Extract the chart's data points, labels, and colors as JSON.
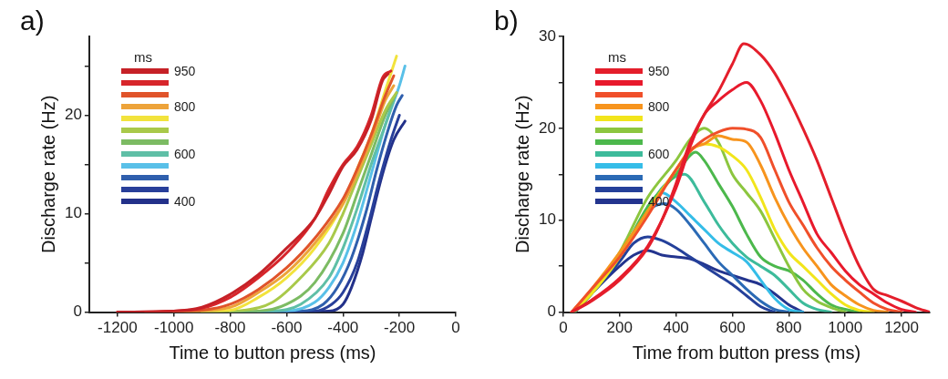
{
  "chart_data": [
    {
      "type": "line",
      "xlabel": "Time to button press (ms)",
      "ylabel": "Discharge rate (Hz)",
      "legend_title": "ms",
      "legend": "top left",
      "grid": false,
      "marker": "none",
      "line_style": "solid",
      "annotations": [
        "a)"
      ],
      "xlim": [
        -1300,
        0
      ],
      "xticks": [
        -1200,
        -1000,
        -800,
        -600,
        -400,
        -200,
        0
      ],
      "ylim": [
        0,
        28
      ],
      "yticks": [
        0,
        {
          "value": 5,
          "label": null
        },
        10,
        {
          "value": 15,
          "label": null
        },
        20,
        {
          "value": 25,
          "label": null
        }
      ],
      "series": [
        {
          "name": "950",
          "color": "#c62127",
          "x": [
            -1200,
            -1000,
            -900,
            -800,
            -700,
            -600,
            -500,
            -450,
            -400,
            -350,
            -300,
            -260,
            -240
          ],
          "values": [
            0,
            0.1,
            0.5,
            1.8,
            3.8,
            6.5,
            9.5,
            12,
            14.8,
            16.5,
            19.5,
            23.5,
            24.2
          ]
        },
        {
          "color": "#d7262b",
          "x": [
            -1200,
            -1000,
            -900,
            -800,
            -700,
            -600,
            -500,
            -450,
            -400,
            -350,
            -300,
            -260,
            -230
          ],
          "values": [
            0,
            0.1,
            0.4,
            1.5,
            3.5,
            6,
            9.5,
            12.5,
            15,
            16.8,
            20,
            23.8,
            24.5
          ]
        },
        {
          "color": "#e0542a",
          "x": [
            -1100,
            -900,
            -800,
            -700,
            -600,
            -500,
            -400,
            -350,
            -300,
            -250,
            -220
          ],
          "values": [
            0,
            0.2,
            0.8,
            2.3,
            4.5,
            7.5,
            11.5,
            14.5,
            18,
            22,
            24
          ]
        },
        {
          "name": "800",
          "color": "#eda33a",
          "x": [
            -1000,
            -800,
            -700,
            -600,
            -500,
            -400,
            -350,
            -300,
            -250,
            -220
          ],
          "values": [
            0,
            0.5,
            2,
            4,
            7,
            11,
            14,
            17.5,
            21.5,
            23
          ]
        },
        {
          "color": "#f2e33c",
          "x": [
            -1000,
            -800,
            -700,
            -600,
            -500,
            -400,
            -350,
            -300,
            -250,
            -210
          ],
          "values": [
            0,
            0.2,
            1.5,
            3.5,
            6.5,
            11,
            14.5,
            18,
            22.5,
            26
          ]
        },
        {
          "color": "#a9c94a",
          "x": [
            -900,
            -750,
            -650,
            -550,
            -450,
            -400,
            -350,
            -300,
            -250,
            -210
          ],
          "values": [
            0,
            0.2,
            1,
            3.5,
            7,
            10,
            13.5,
            17,
            20.5,
            22.3
          ]
        },
        {
          "color": "#7cbb63",
          "x": [
            -900,
            -700,
            -600,
            -500,
            -400,
            -350,
            -300,
            -250,
            -215
          ],
          "values": [
            0,
            0.1,
            0.8,
            3,
            8,
            12,
            16,
            20,
            22
          ]
        },
        {
          "name": "600",
          "color": "#5fbfa6",
          "x": [
            -800,
            -650,
            -550,
            -450,
            -400,
            -350,
            -300,
            -250,
            -220
          ],
          "values": [
            0,
            0.1,
            0.8,
            3.5,
            6.5,
            10.5,
            15,
            19,
            21.5
          ]
        },
        {
          "color": "#59c0e8",
          "x": [
            -800,
            -600,
            -500,
            -450,
            -400,
            -350,
            -300,
            -250,
            -200,
            -180
          ],
          "values": [
            0,
            0.1,
            1,
            2.5,
            5,
            9,
            14,
            19,
            23,
            25
          ]
        },
        {
          "color": "#2f5fad",
          "x": [
            -700,
            -550,
            -470,
            -420,
            -370,
            -320,
            -280,
            -240,
            -210,
            -190
          ],
          "values": [
            0,
            0.1,
            0.8,
            2.5,
            5.5,
            10,
            14.5,
            18.5,
            21,
            22
          ]
        },
        {
          "color": "#283f9a",
          "x": [
            -700,
            -500,
            -440,
            -400,
            -350,
            -310,
            -270,
            -230,
            -200
          ],
          "values": [
            0,
            0.1,
            0.8,
            2,
            5,
            9,
            13.5,
            17.5,
            20
          ]
        },
        {
          "name": "400",
          "color": "#23318a",
          "x": [
            -700,
            -450,
            -400,
            -370,
            -330,
            -300,
            -260,
            -220,
            -180
          ],
          "values": [
            0,
            0.1,
            0.8,
            2.5,
            6,
            9.5,
            14,
            17.5,
            19.4
          ]
        }
      ]
    },
    {
      "type": "line",
      "xlabel": "Time from button press (ms)",
      "ylabel": "Discharge rate (Hz)",
      "legend_title": "ms",
      "legend": "top left",
      "grid": false,
      "marker": "none",
      "line_style": "solid",
      "annotations": [
        "b)"
      ],
      "xlim": [
        0,
        1300
      ],
      "xticks": [
        0,
        200,
        400,
        600,
        800,
        1000,
        1200
      ],
      "ylim": [
        0,
        30
      ],
      "yticks": [
        0,
        {
          "value": 5,
          "label": null
        },
        10,
        {
          "value": 15,
          "label": null
        },
        20,
        {
          "value": 25,
          "label": null
        },
        30
      ],
      "series": [
        {
          "name": "950",
          "color": "#e41e2b",
          "x": [
            30,
            100,
            200,
            300,
            350,
            400,
            450,
            500,
            550,
            600,
            640,
            700,
            750,
            800,
            850,
            900,
            950,
            1000,
            1050,
            1100,
            1150,
            1200,
            1250,
            1300
          ],
          "values": [
            0,
            1.2,
            3.5,
            7,
            10,
            14,
            18.5,
            21.5,
            24,
            27,
            29.2,
            28,
            26,
            23.2,
            20,
            16.5,
            12.5,
            8.5,
            5,
            2.5,
            1.8,
            1.2,
            0.5,
            0
          ]
        },
        {
          "color": "#e8192c",
          "x": [
            30,
            100,
            200,
            300,
            400,
            450,
            500,
            550,
            600,
            650,
            700,
            750,
            800,
            850,
            900,
            950,
            1000,
            1050,
            1100,
            1150,
            1200,
            1250
          ],
          "values": [
            0,
            1.3,
            3.7,
            7.2,
            13.5,
            18,
            21.5,
            23,
            24.2,
            25,
            23,
            19.5,
            15.5,
            12,
            8.5,
            6.5,
            4.5,
            3,
            2,
            1,
            0.3,
            0
          ]
        },
        {
          "color": "#f04f2a",
          "x": [
            30,
            100,
            200,
            300,
            400,
            450,
            500,
            550,
            600,
            650,
            700,
            750,
            800,
            850,
            900,
            950,
            1000,
            1050,
            1100,
            1150,
            1200
          ],
          "values": [
            0,
            2.5,
            6,
            10.5,
            15.5,
            17.5,
            18.8,
            19.6,
            20,
            19.9,
            19,
            15.5,
            12,
            9.5,
            7,
            5,
            3.5,
            2.2,
            1,
            0.3,
            0
          ]
        },
        {
          "name": "800",
          "color": "#f7941d",
          "x": [
            30,
            100,
            200,
            300,
            400,
            450,
            500,
            550,
            600,
            650,
            700,
            750,
            800,
            850,
            900,
            950,
            1000,
            1050,
            1100,
            1150
          ],
          "values": [
            0,
            2.5,
            6.5,
            11,
            15.5,
            17.7,
            18.3,
            19.2,
            18.8,
            18.5,
            16,
            12.5,
            9.5,
            7,
            5,
            3,
            1.8,
            0.8,
            0.2,
            0
          ]
        },
        {
          "color": "#f2e51b",
          "x": [
            30,
            100,
            200,
            300,
            400,
            450,
            500,
            550,
            600,
            650,
            700,
            750,
            800,
            850,
            900,
            950,
            1000,
            1050,
            1100
          ],
          "values": [
            0,
            2,
            6,
            11,
            15.5,
            17.5,
            18.3,
            18,
            17,
            15.5,
            12.5,
            9,
            6.5,
            5,
            3.5,
            2,
            0.8,
            0.2,
            0
          ]
        },
        {
          "color": "#8cc63f",
          "x": [
            40,
            100,
            200,
            300,
            400,
            450,
            500,
            550,
            600,
            650,
            700,
            750,
            800,
            850,
            900,
            950,
            1000
          ],
          "values": [
            0,
            2,
            6.5,
            12.5,
            16.5,
            18.8,
            20,
            18.5,
            15,
            13,
            11,
            8,
            5,
            2.5,
            1.2,
            0.5,
            0
          ]
        },
        {
          "color": "#4cb84c",
          "x": [
            40,
            100,
            200,
            300,
            400,
            470,
            500,
            550,
            600,
            650,
            700,
            750,
            800,
            850,
            900,
            950,
            1000,
            1050
          ],
          "values": [
            0,
            2,
            6,
            11.5,
            15,
            17.4,
            16.5,
            14,
            11.5,
            8.5,
            6,
            5,
            4.5,
            3.5,
            2,
            0.8,
            0.3,
            0
          ]
        },
        {
          "name": "600",
          "color": "#3dbb9b",
          "x": [
            200,
            300,
            350,
            430,
            500,
            550,
            600,
            650,
            700,
            750,
            800,
            850,
            900,
            950
          ],
          "values": [
            6,
            11,
            13.5,
            15,
            12,
            9.5,
            7.5,
            6,
            5,
            4,
            2.5,
            1,
            0.3,
            0
          ]
        },
        {
          "color": "#35bde8",
          "x": [
            300,
            350,
            400,
            450,
            500,
            550,
            600,
            650,
            700,
            750,
            800,
            850
          ],
          "values": [
            11.5,
            13,
            12,
            10.5,
            9,
            7.5,
            6.5,
            5.5,
            3.5,
            1.5,
            0.3,
            0
          ]
        },
        {
          "color": "#2b6ab5",
          "x": [
            40,
            100,
            200,
            300,
            360,
            400,
            450,
            500,
            550,
            600,
            650,
            700,
            750,
            800
          ],
          "values": [
            0,
            2,
            6,
            11,
            11.8,
            11.2,
            9.5,
            7.5,
            5.5,
            4,
            2.5,
            1.2,
            0.3,
            0
          ]
        },
        {
          "color": "#24409a",
          "x": [
            40,
            100,
            200,
            250,
            300,
            350,
            400,
            450,
            500,
            550,
            600,
            650,
            700,
            750
          ],
          "values": [
            0,
            2,
            5.5,
            7.5,
            8.2,
            7.8,
            7,
            6,
            5,
            4,
            3,
            1.8,
            0.6,
            0
          ]
        },
        {
          "name": "400",
          "color": "#23348e",
          "x": [
            40,
            100,
            200,
            250,
            300,
            350,
            400,
            450,
            500,
            550,
            600,
            650,
            700,
            750,
            800,
            850
          ],
          "values": [
            0,
            2,
            5,
            6.2,
            6.7,
            6.2,
            6,
            5.8,
            5.2,
            4.5,
            4,
            3.5,
            3,
            2,
            0.8,
            0
          ]
        }
      ]
    }
  ]
}
